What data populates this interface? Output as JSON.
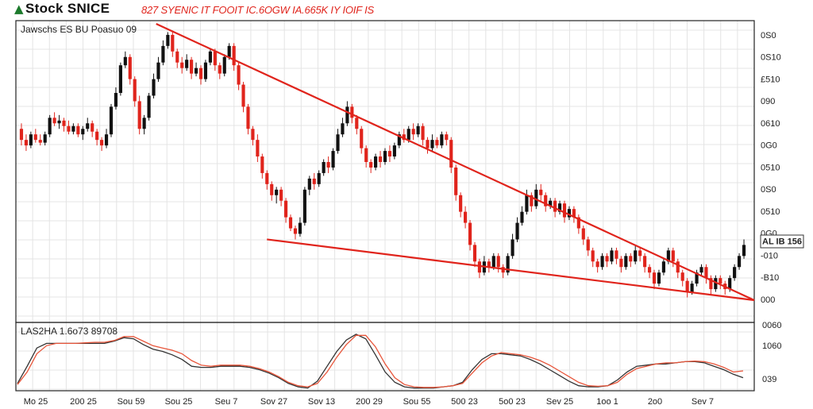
{
  "header": {
    "title": "Stock SNICE",
    "title_icon": "up-arrow-icon",
    "ticker_text": "827 SYENIC IT FOOIT IC.6OGW IA.665K IY IOIF IS"
  },
  "price_panel": {
    "label": "Jawschs ES BU Poasuo 09"
  },
  "oscillator_panel": {
    "label": "LAS2HA 1.6o73 89708"
  },
  "colors": {
    "up": "#111111",
    "down": "#e0241c",
    "trendline": "#e0241c",
    "osc_fast": "#333333",
    "osc_slow": "#e8553a",
    "grid": "#e4e4e4"
  },
  "chart_data": [
    {
      "type": "candlestick",
      "title": "",
      "y_tick_labels": [
        "0S0",
        "0S10",
        "£510",
        "090",
        "0610",
        "0G0",
        "0510",
        "0S0",
        "0510",
        "0G0",
        "-010",
        "-B10",
        "000"
      ],
      "current_price_label": "AL IB 156",
      "x_tick_labels": [
        "Mo 25",
        "200 25",
        "Sou 59",
        "Sou 25",
        "Seu 7",
        "Sov 27",
        "Sov 13",
        "200 29",
        "Sou 55",
        "500 23",
        "5o0 23",
        "Sev 25",
        "1oo 1",
        "2o0",
        "Sev 7"
      ],
      "ylim": [
        0,
        100
      ],
      "series": [
        {
          "candles": [
            [
              62,
              58,
              64,
              56
            ],
            [
              58,
              56,
              60,
              54
            ],
            [
              56,
              60,
              61,
              55
            ],
            [
              60,
              58,
              62,
              57
            ],
            [
              58,
              57,
              60,
              56
            ],
            [
              57,
              60,
              61,
              56
            ],
            [
              60,
              66,
              67,
              59
            ],
            [
              66,
              64,
              68,
              63
            ],
            [
              64,
              65,
              67,
              62
            ],
            [
              65,
              63,
              66,
              61
            ],
            [
              63,
              61,
              65,
              60
            ],
            [
              61,
              63,
              64,
              60
            ],
            [
              63,
              60,
              64,
              59
            ],
            [
              60,
              62,
              63,
              58
            ],
            [
              62,
              64,
              66,
              61
            ],
            [
              64,
              61,
              65,
              59
            ],
            [
              61,
              58,
              62,
              56
            ],
            [
              58,
              56,
              59,
              54
            ],
            [
              56,
              60,
              62,
              55
            ],
            [
              60,
              70,
              71,
              59
            ],
            [
              70,
              75,
              77,
              69
            ],
            [
              75,
              85,
              86,
              74
            ],
            [
              85,
              88,
              90,
              84
            ],
            [
              88,
              80,
              89,
              78
            ],
            [
              80,
              72,
              81,
              70
            ],
            [
              72,
              62,
              74,
              60
            ],
            [
              62,
              66,
              67,
              60
            ],
            [
              66,
              74,
              75,
              65
            ],
            [
              74,
              80,
              82,
              73
            ],
            [
              80,
              86,
              88,
              79
            ],
            [
              86,
              92,
              94,
              85
            ],
            [
              92,
              96,
              97,
              91
            ],
            [
              96,
              90,
              97,
              88
            ],
            [
              90,
              86,
              91,
              84
            ],
            [
              86,
              84,
              88,
              82
            ],
            [
              84,
              87,
              89,
              83
            ],
            [
              87,
              82,
              88,
              80
            ],
            [
              82,
              84,
              86,
              81
            ],
            [
              84,
              80,
              85,
              78
            ],
            [
              80,
              86,
              87,
              79
            ],
            [
              86,
              90,
              91,
              85
            ],
            [
              90,
              85,
              91,
              83
            ],
            [
              85,
              82,
              86,
              80
            ],
            [
              82,
              88,
              89,
              81
            ],
            [
              88,
              92,
              93,
              87
            ],
            [
              92,
              85,
              93,
              83
            ],
            [
              85,
              78,
              86,
              76
            ],
            [
              78,
              70,
              79,
              68
            ],
            [
              70,
              62,
              71,
              60
            ],
            [
              62,
              58,
              63,
              56
            ],
            [
              58,
              52,
              60,
              50
            ],
            [
              52,
              46,
              53,
              44
            ],
            [
              46,
              42,
              47,
              40
            ],
            [
              42,
              38,
              43,
              36
            ],
            [
              38,
              40,
              41,
              35
            ],
            [
              40,
              36,
              41,
              34
            ],
            [
              36,
              30,
              37,
              28
            ],
            [
              30,
              26,
              31,
              25
            ],
            [
              26,
              24,
              27,
              22
            ],
            [
              24,
              28,
              30,
              23
            ],
            [
              28,
              40,
              41,
              27
            ],
            [
              40,
              44,
              45,
              38
            ],
            [
              44,
              42,
              46,
              40
            ],
            [
              42,
              46,
              47,
              41
            ],
            [
              46,
              50,
              51,
              45
            ],
            [
              50,
              48,
              52,
              46
            ],
            [
              48,
              54,
              55,
              47
            ],
            [
              54,
              60,
              62,
              53
            ],
            [
              60,
              64,
              66,
              59
            ],
            [
              64,
              70,
              72,
              63
            ],
            [
              70,
              66,
              71,
              64
            ],
            [
              66,
              62,
              67,
              60
            ],
            [
              62,
              55,
              63,
              53
            ],
            [
              55,
              50,
              56,
              48
            ],
            [
              50,
              48,
              51,
              46
            ],
            [
              48,
              52,
              53,
              47
            ],
            [
              52,
              50,
              54,
              48
            ],
            [
              50,
              54,
              55,
              49
            ],
            [
              54,
              52,
              56,
              50
            ],
            [
              52,
              56,
              57,
              51
            ],
            [
              56,
              60,
              61,
              55
            ],
            [
              60,
              58,
              62,
              57
            ],
            [
              58,
              62,
              63,
              57
            ],
            [
              62,
              60,
              64,
              58
            ],
            [
              60,
              63,
              64,
              59
            ],
            [
              63,
              58,
              64,
              56
            ],
            [
              58,
              55,
              59,
              53
            ],
            [
              55,
              58,
              60,
              54
            ],
            [
              58,
              56,
              59,
              55
            ],
            [
              56,
              60,
              61,
              55
            ],
            [
              60,
              58,
              61,
              56
            ],
            [
              58,
              48,
              59,
              46
            ],
            [
              48,
              38,
              49,
              36
            ],
            [
              38,
              32,
              39,
              30
            ],
            [
              32,
              28,
              34,
              26
            ],
            [
              28,
              20,
              29,
              18
            ],
            [
              20,
              14,
              21,
              12
            ],
            [
              14,
              10,
              15,
              8
            ],
            [
              10,
              14,
              16,
              9
            ],
            [
              14,
              12,
              15,
              10
            ],
            [
              12,
              16,
              17,
              11
            ],
            [
              16,
              12,
              17,
              10
            ],
            [
              12,
              10,
              13,
              8
            ],
            [
              10,
              16,
              17,
              9
            ],
            [
              16,
              22,
              24,
              15
            ],
            [
              22,
              28,
              30,
              21
            ],
            [
              28,
              32,
              34,
              27
            ],
            [
              32,
              38,
              40,
              31
            ],
            [
              38,
              34,
              39,
              32
            ],
            [
              34,
              40,
              42,
              33
            ],
            [
              40,
              38,
              42,
              36
            ],
            [
              38,
              34,
              39,
              32
            ],
            [
              34,
              36,
              37,
              33
            ],
            [
              36,
              32,
              37,
              30
            ],
            [
              32,
              35,
              36,
              31
            ],
            [
              35,
              30,
              36,
              28
            ],
            [
              30,
              33,
              34,
              29
            ],
            [
              33,
              30,
              34,
              28
            ],
            [
              30,
              26,
              31,
              24
            ],
            [
              26,
              22,
              27,
              20
            ],
            [
              22,
              18,
              23,
              16
            ],
            [
              18,
              14,
              19,
              12
            ],
            [
              14,
              12,
              15,
              10
            ],
            [
              12,
              16,
              17,
              11
            ],
            [
              16,
              14,
              17,
              12
            ],
            [
              14,
              18,
              19,
              13
            ],
            [
              18,
              15,
              19,
              13
            ],
            [
              15,
              12,
              16,
              10
            ],
            [
              12,
              16,
              17,
              11
            ],
            [
              16,
              14,
              17,
              12
            ],
            [
              14,
              18,
              20,
              13
            ],
            [
              18,
              16,
              19,
              14
            ],
            [
              16,
              12,
              17,
              10
            ],
            [
              12,
              10,
              13,
              8
            ],
            [
              10,
              6,
              11,
              4
            ],
            [
              6,
              10,
              11,
              5
            ],
            [
              10,
              14,
              15,
              9
            ],
            [
              14,
              18,
              19,
              13
            ],
            [
              18,
              14,
              19,
              12
            ],
            [
              14,
              10,
              15,
              8
            ],
            [
              10,
              7,
              11,
              5
            ],
            [
              7,
              3,
              8,
              1
            ],
            [
              3,
              6,
              7,
              2
            ],
            [
              6,
              10,
              11,
              5
            ],
            [
              10,
              12,
              13,
              9
            ],
            [
              12,
              8,
              13,
              6
            ],
            [
              8,
              4,
              9,
              2
            ],
            [
              4,
              8,
              9,
              3
            ],
            [
              8,
              6,
              9,
              4
            ],
            [
              6,
              4,
              7,
              2
            ],
            [
              4,
              8,
              9,
              3
            ],
            [
              8,
              12,
              13,
              7
            ],
            [
              12,
              16,
              17,
              11
            ],
            [
              16,
              20,
              22,
              15
            ]
          ]
        }
      ],
      "trendlines": [
        {
          "name": "upper",
          "from": [
            0.19,
            100
          ],
          "to": [
            1.0,
            0
          ]
        },
        {
          "name": "lower",
          "from": [
            0.34,
            22
          ],
          "to": [
            1.0,
            0
          ]
        }
      ]
    },
    {
      "type": "line",
      "title": "",
      "y_tick_labels": [
        "0060",
        "1060",
        "039"
      ],
      "ylim": [
        0,
        100
      ],
      "series": [
        {
          "values": [
            10,
            40,
            72,
            80,
            80,
            80,
            80,
            80,
            80,
            80,
            84,
            90,
            88,
            78,
            70,
            66,
            60,
            52,
            40,
            38,
            38,
            40,
            40,
            40,
            38,
            34,
            28,
            20,
            10,
            4,
            2,
            14,
            40,
            66,
            86,
            96,
            88,
            60,
            30,
            12,
            4,
            2,
            2,
            2,
            4,
            6,
            12,
            34,
            52,
            62,
            62,
            60,
            58,
            52,
            44,
            34,
            24,
            14,
            6,
            4,
            4,
            6,
            16,
            30,
            40,
            42,
            44,
            44,
            46,
            48,
            48,
            46,
            40,
            34,
            26,
            20
          ]
        },
        {
          "values": [
            8,
            30,
            62,
            76,
            80,
            80,
            80,
            81,
            82,
            82,
            85,
            92,
            92,
            84,
            76,
            72,
            68,
            62,
            50,
            42,
            40,
            42,
            42,
            42,
            40,
            36,
            30,
            22,
            12,
            6,
            4,
            10,
            30,
            56,
            78,
            94,
            94,
            74,
            44,
            20,
            8,
            4,
            3,
            3,
            4,
            6,
            10,
            28,
            46,
            58,
            64,
            62,
            60,
            56,
            50,
            42,
            32,
            22,
            12,
            6,
            5,
            6,
            12,
            26,
            36,
            40,
            44,
            46,
            46,
            48,
            49,
            48,
            44,
            38,
            30,
            32
          ]
        }
      ]
    }
  ]
}
